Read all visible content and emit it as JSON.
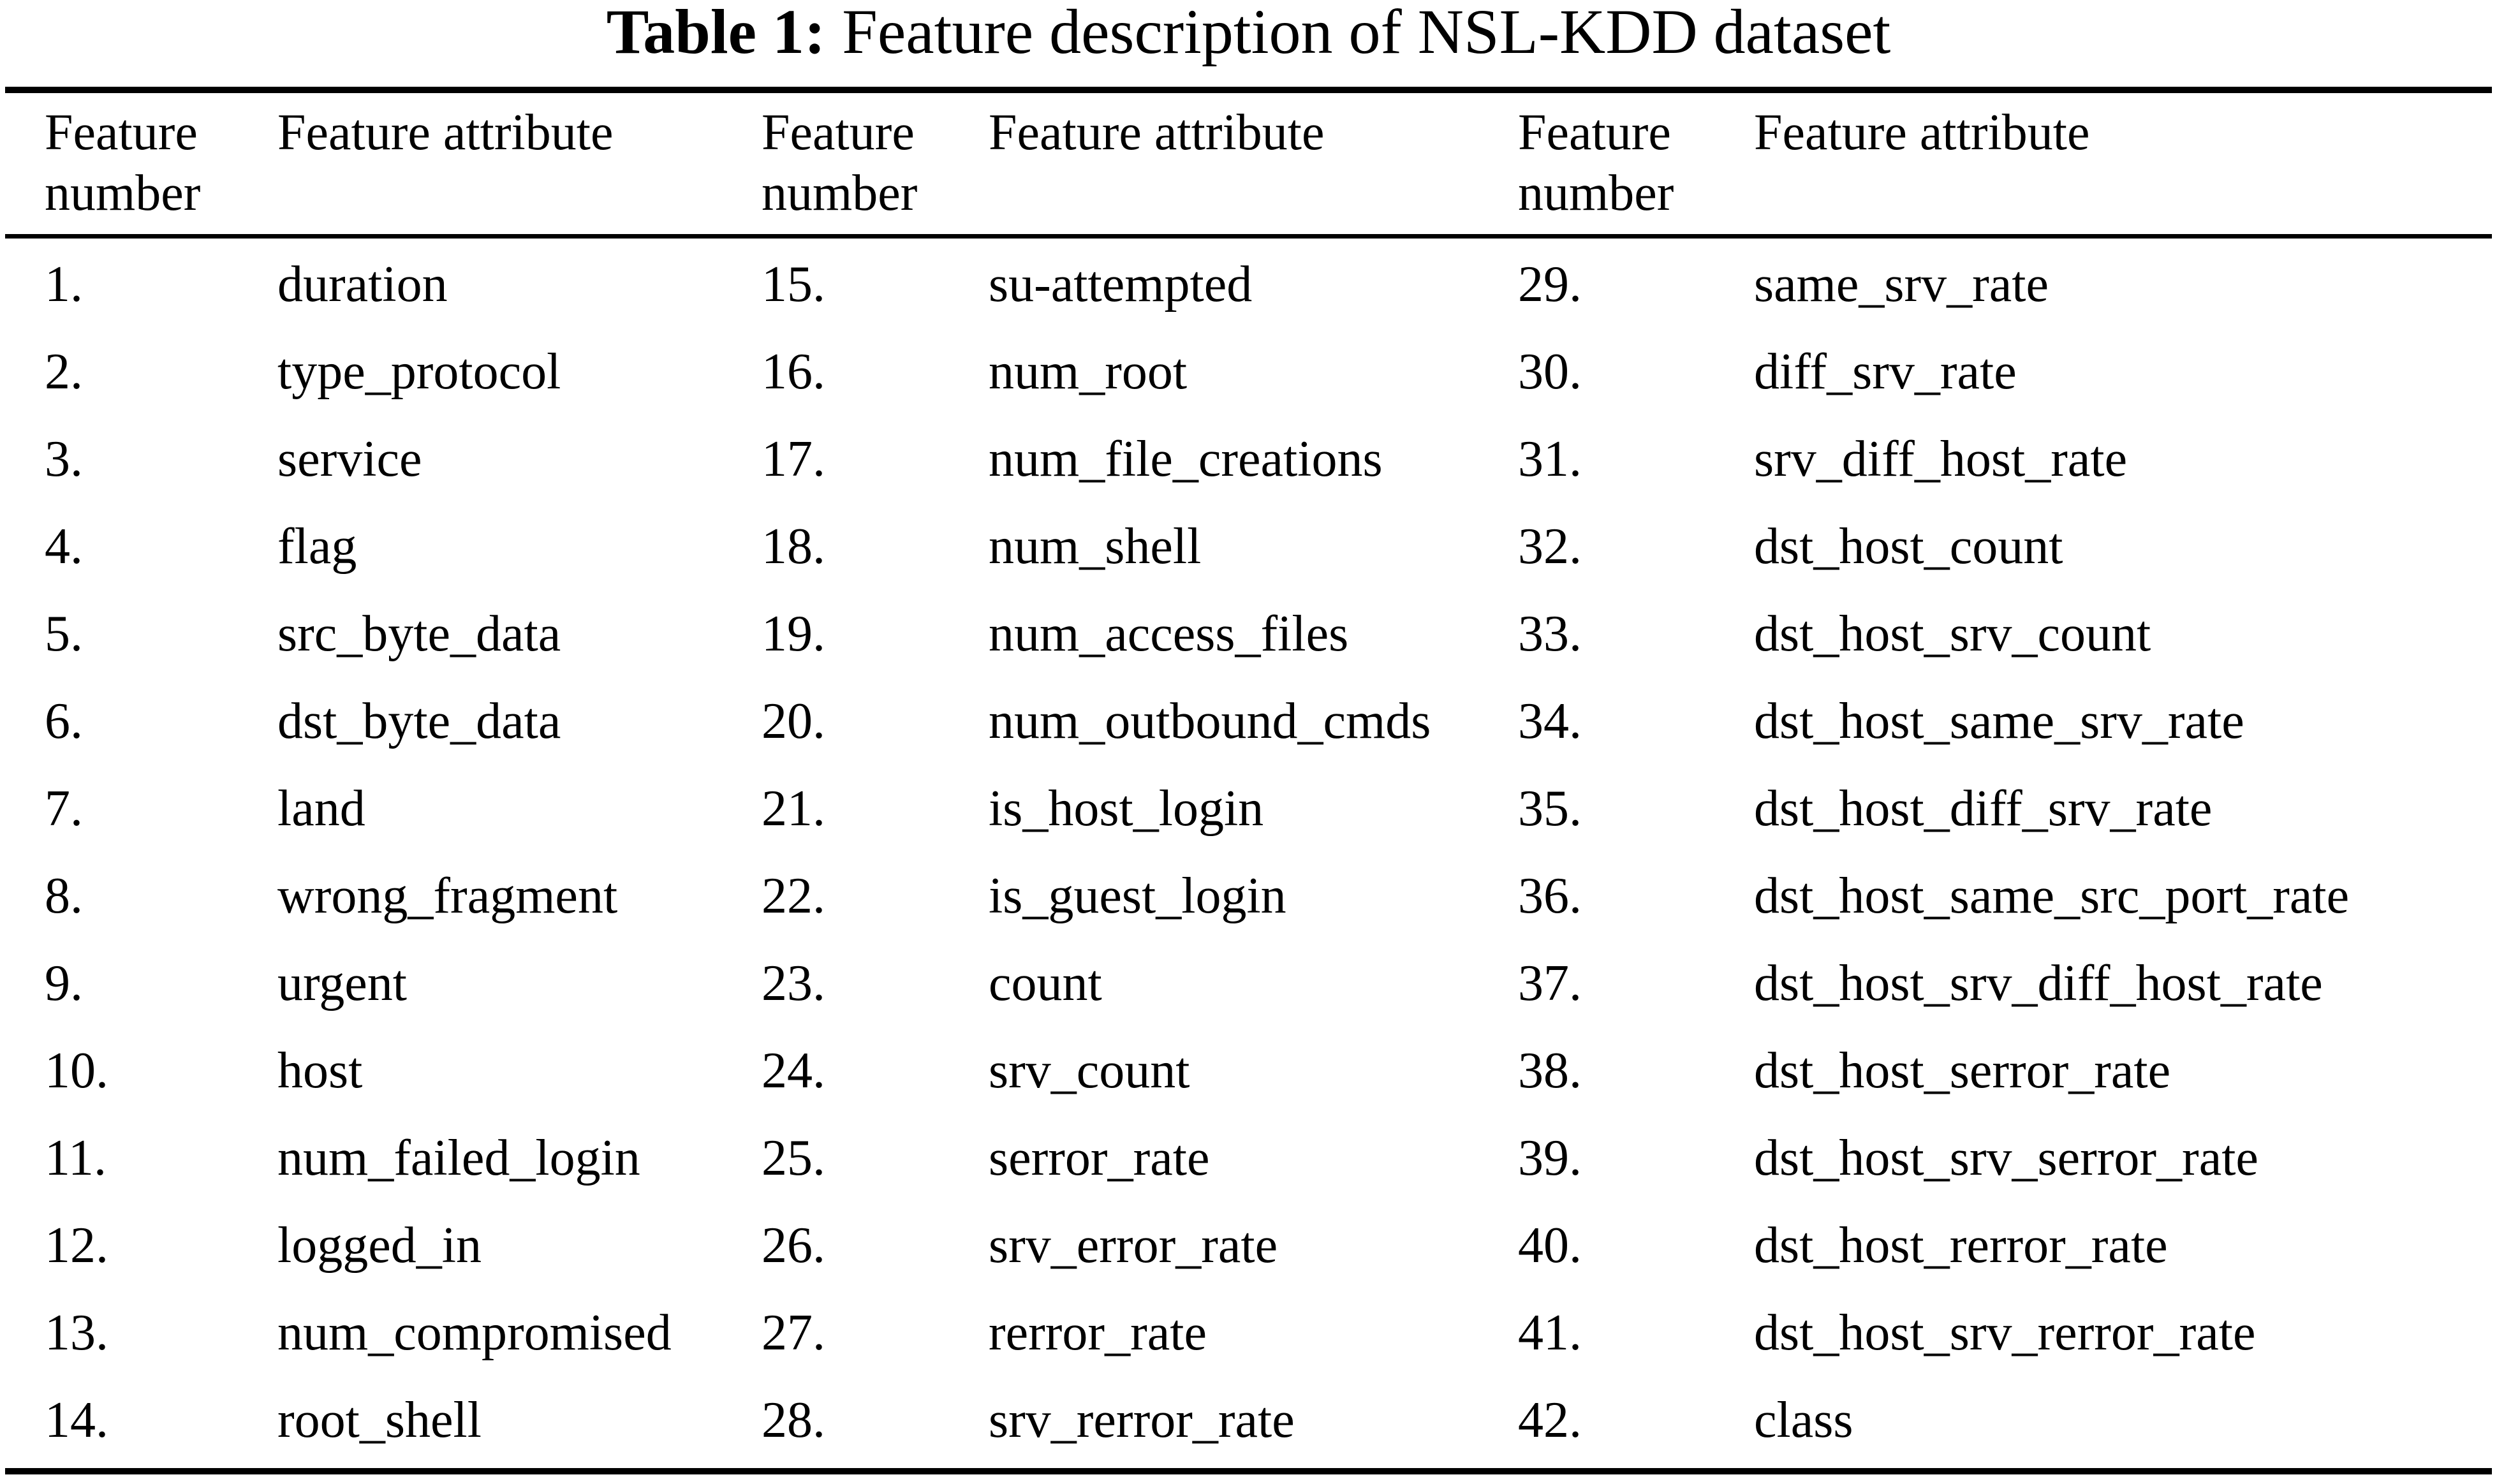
{
  "caption": {
    "label": "Table 1:",
    "text": "Feature description of NSL-KDD dataset"
  },
  "table": {
    "groups": [
      {
        "number_header": "Feature number",
        "attribute_header": "Feature attribute",
        "rows": [
          {
            "number": "1.",
            "attribute": "duration"
          },
          {
            "number": "2.",
            "attribute": "type_protocol"
          },
          {
            "number": "3.",
            "attribute": "service"
          },
          {
            "number": "4.",
            "attribute": "flag"
          },
          {
            "number": "5.",
            "attribute": "src_byte_data"
          },
          {
            "number": "6.",
            "attribute": "dst_byte_data"
          },
          {
            "number": "7.",
            "attribute": "land"
          },
          {
            "number": "8.",
            "attribute": "wrong_fragment"
          },
          {
            "number": "9.",
            "attribute": "urgent"
          },
          {
            "number": "10.",
            "attribute": "host"
          },
          {
            "number": "11.",
            "attribute": "num_failed_login"
          },
          {
            "number": "12.",
            "attribute": "logged_in"
          },
          {
            "number": "13.",
            "attribute": "num_compromised"
          },
          {
            "number": "14.",
            "attribute": "root_shell"
          }
        ]
      },
      {
        "number_header": "Feature number",
        "attribute_header": "Feature attribute",
        "rows": [
          {
            "number": "15.",
            "attribute": "su-attempted"
          },
          {
            "number": "16.",
            "attribute": "num_root"
          },
          {
            "number": "17.",
            "attribute": "num_file_creations"
          },
          {
            "number": "18.",
            "attribute": "num_shell"
          },
          {
            "number": "19.",
            "attribute": "num_access_files"
          },
          {
            "number": "20.",
            "attribute": "num_outbound_cmds"
          },
          {
            "number": "21.",
            "attribute": "is_host_login"
          },
          {
            "number": "22.",
            "attribute": "is_guest_login"
          },
          {
            "number": "23.",
            "attribute": "count"
          },
          {
            "number": "24.",
            "attribute": "srv_count"
          },
          {
            "number": "25.",
            "attribute": "serror_rate"
          },
          {
            "number": "26.",
            "attribute": "srv_error_rate"
          },
          {
            "number": "27.",
            "attribute": "rerror_rate"
          },
          {
            "number": "28.",
            "attribute": "srv_rerror_rate"
          }
        ]
      },
      {
        "number_header": "Feature number",
        "attribute_header": "Feature attribute",
        "rows": [
          {
            "number": "29.",
            "attribute": "same_srv_rate"
          },
          {
            "number": "30.",
            "attribute": "diff_srv_rate"
          },
          {
            "number": "31.",
            "attribute": "srv_diff_host_rate"
          },
          {
            "number": "32.",
            "attribute": "dst_host_count"
          },
          {
            "number": "33.",
            "attribute": "dst_host_srv_count"
          },
          {
            "number": "34.",
            "attribute": "dst_host_same_srv_rate"
          },
          {
            "number": "35.",
            "attribute": "dst_host_diff_srv_rate"
          },
          {
            "number": "36.",
            "attribute": "dst_host_same_src_port_rate"
          },
          {
            "number": "37.",
            "attribute": "dst_host_srv_diff_host_rate"
          },
          {
            "number": "38.",
            "attribute": "dst_host_serror_rate"
          },
          {
            "number": "39.",
            "attribute": "dst_host_srv_serror_rate"
          },
          {
            "number": "40.",
            "attribute": "dst_host_rerror_rate"
          },
          {
            "number": "41.",
            "attribute": "dst_host_srv_rerror_rate"
          },
          {
            "number": "42.",
            "attribute": "class"
          }
        ]
      }
    ]
  }
}
